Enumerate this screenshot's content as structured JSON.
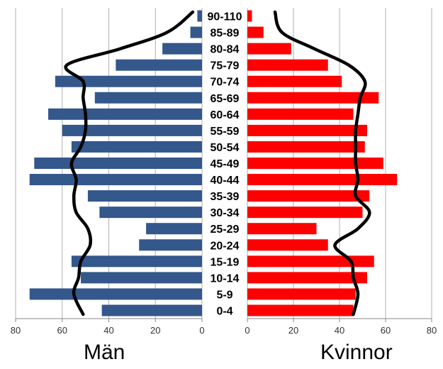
{
  "chart_data": {
    "type": "bar",
    "orientation": "horizontal",
    "categories": [
      "90-110",
      "85-89",
      "80-84",
      "75-79",
      "70-74",
      "65-69",
      "60-64",
      "55-59",
      "50-54",
      "45-49",
      "40-44",
      "35-39",
      "30-34",
      "25-29",
      "20-24",
      "15-19",
      "10-14",
      "5-9",
      "0-4"
    ],
    "series": [
      {
        "name": "Män",
        "color": "#34578c",
        "values": [
          2,
          5,
          17,
          37,
          63,
          46,
          66,
          60,
          56,
          72,
          74,
          49,
          44,
          24,
          27,
          56,
          52,
          74,
          43
        ]
      },
      {
        "name": "Kvinnor",
        "color": "#ff0000",
        "values": [
          2,
          7,
          19,
          35,
          41,
          57,
          46,
          52,
          51,
          59,
          65,
          53,
          50,
          30,
          35,
          55,
          52,
          47,
          46
        ]
      }
    ],
    "reference_lines": [
      {
        "side": "Män",
        "color": "#000000",
        "values": [
          4,
          15,
          35,
          58,
          51,
          51,
          50,
          50,
          52,
          56,
          54,
          55,
          54,
          49,
          48,
          52,
          53,
          55,
          51
        ]
      },
      {
        "side": "Kvinnor",
        "color": "#000000",
        "values": [
          12,
          15,
          29,
          44,
          51,
          49,
          48,
          47,
          47,
          47,
          48,
          47,
          53,
          48,
          38,
          45,
          46,
          48,
          46
        ]
      }
    ],
    "xlabel_left": "Män",
    "xlabel_right": "Kvinnor",
    "xlim": [
      0,
      80
    ],
    "xticks": [
      80,
      60,
      40,
      20,
      0
    ],
    "xticks_right": [
      0,
      20,
      40,
      60,
      80
    ],
    "grid": true,
    "colors": {
      "men": "#34578c",
      "women": "#ff0000",
      "grid": "#b0b0b0",
      "line": "#000000"
    }
  }
}
